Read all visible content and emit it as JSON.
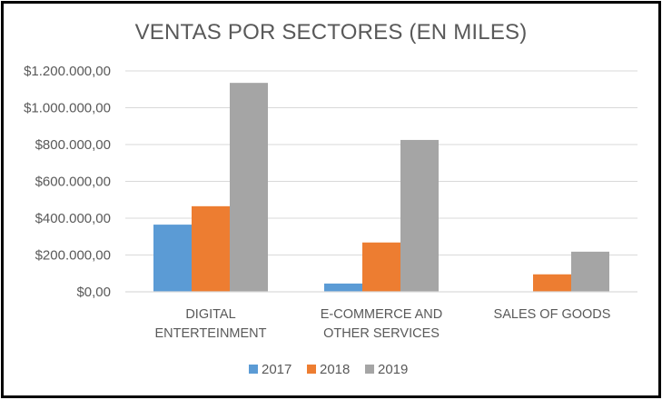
{
  "chart_data": {
    "type": "bar",
    "title": "VENTAS POR SECTORES (EN MILES)",
    "categories": [
      [
        "DIGITAL",
        "ENTERTEINMENT"
      ],
      [
        "E-COMMERCE AND",
        "OTHER SERVICES"
      ],
      [
        "SALES OF GOODS"
      ]
    ],
    "series": [
      {
        "name": "2017",
        "color": "#5B9BD5",
        "values": [
          365000,
          45000,
          0
        ]
      },
      {
        "name": "2018",
        "color": "#ED7D31",
        "values": [
          465000,
          268000,
          95000
        ]
      },
      {
        "name": "2019",
        "color": "#A5A5A5",
        "values": [
          1135000,
          825000,
          218000
        ]
      }
    ],
    "ylim": [
      0,
      1200000
    ],
    "yticks": [
      0,
      200000,
      400000,
      600000,
      800000,
      1000000,
      1200000
    ],
    "ytick_labels": [
      "$0,00",
      "$200.000,00",
      "$400.000,00",
      "$600.000,00",
      "$800.000,00",
      "$1.000.000,00",
      "$1.200.000,00"
    ],
    "grid": true,
    "legend": "bottom",
    "xlabel": "",
    "ylabel": ""
  }
}
